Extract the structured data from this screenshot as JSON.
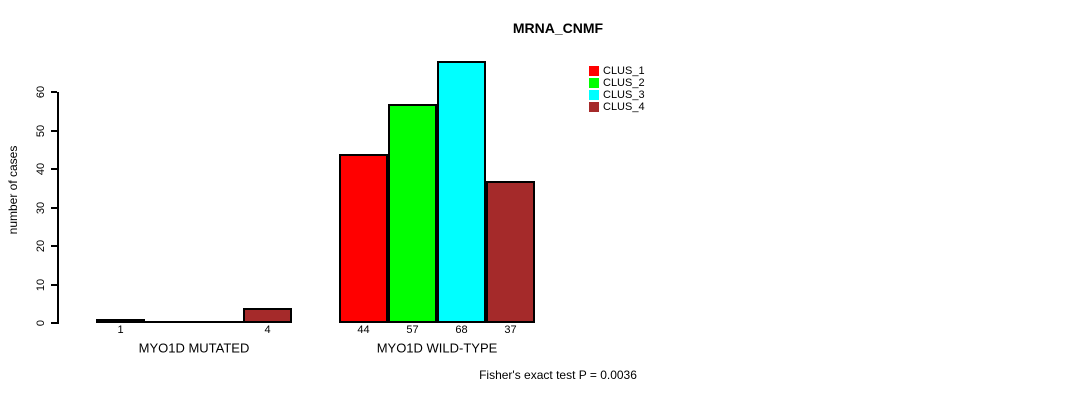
{
  "title": "MRNA_CNMF",
  "footer": "Fisher's exact test P = 0.0036",
  "chart_data": {
    "type": "bar",
    "title": "MRNA_CNMF",
    "xlabel": "",
    "ylabel": "number of cases",
    "ylim": [
      0,
      60
    ],
    "yticks": [
      0,
      10,
      20,
      30,
      40,
      50,
      60
    ],
    "grid": false,
    "legend_position": "top-right",
    "bar_outline_color": "#000000",
    "categories": [
      "MYO1D MUTATED",
      "MYO1D WILD-TYPE"
    ],
    "series": [
      {
        "name": "CLUS_1",
        "color": "#FF0000",
        "values": [
          1,
          44
        ]
      },
      {
        "name": "CLUS_2",
        "color": "#00FF00",
        "values": [
          0,
          57
        ]
      },
      {
        "name": "CLUS_3",
        "color": "#00FFFF",
        "values": [
          0,
          68
        ]
      },
      {
        "name": "CLUS_4",
        "color": "#A52A2A",
        "values": [
          4,
          37
        ]
      }
    ],
    "bar_value_labels": {
      "MYO1D MUTATED": [
        1,
        null,
        null,
        4
      ],
      "MYO1D WILD-TYPE": [
        44,
        57,
        68,
        37
      ]
    },
    "annotation": "Fisher's exact test P = 0.0036"
  }
}
